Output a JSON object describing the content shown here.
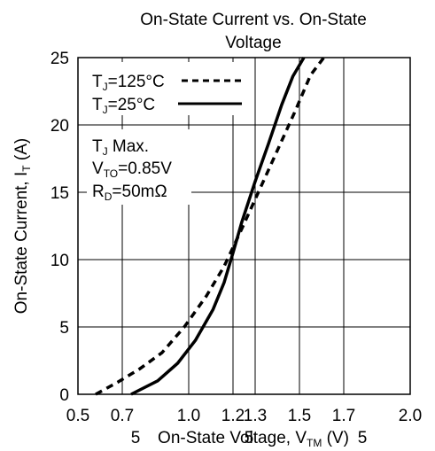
{
  "chart_data": {
    "type": "line",
    "title": [
      "On-State Current vs. On-State",
      "Voltage"
    ],
    "xlabel": {
      "main": "On-State Voltage, V",
      "sub": "TM",
      "unit": " (V)"
    },
    "ylabel": {
      "main": "On-State Current, I",
      "sub": "T",
      "unit": " (A)"
    },
    "xlim": [
      0.5,
      2.0
    ],
    "ylim": [
      0,
      25
    ],
    "x_ticks": [
      0.5,
      0.7,
      1.0,
      1.2,
      1.3,
      1.5,
      1.7,
      2.0
    ],
    "x_tick_labels": [
      "0.5",
      "0.7",
      "1.0",
      "1.2",
      "1.3",
      "1.5",
      "1.7",
      "2.0"
    ],
    "y_ticks": [
      0,
      5,
      10,
      15,
      20,
      25
    ],
    "y_tick_labels": [
      "0",
      "5",
      "10",
      "15",
      "20",
      "25"
    ],
    "grid": true,
    "stray_glyphs": [
      "5",
      "5",
      "5"
    ],
    "legend_position": "top-left",
    "series": [
      {
        "name": {
          "pre": "T",
          "sub": "J",
          "post": "=125°C"
        },
        "style": "dashed",
        "x": [
          0.58,
          0.68,
          0.78,
          0.88,
          0.98,
          1.08,
          1.16,
          1.24,
          1.32,
          1.4,
          1.48,
          1.55,
          1.61
        ],
        "y": [
          0,
          0.9,
          1.9,
          3.1,
          5.0,
          7.3,
          9.5,
          12.3,
          15.2,
          18.1,
          21.0,
          23.7,
          25.0
        ]
      },
      {
        "name": {
          "pre": "T",
          "sub": "J",
          "post": "=25°C"
        },
        "style": "solid",
        "x": [
          0.74,
          0.86,
          0.95,
          1.03,
          1.11,
          1.16,
          1.2,
          1.24,
          1.3,
          1.36,
          1.42,
          1.47,
          1.52
        ],
        "y": [
          0,
          1.0,
          2.3,
          4.0,
          6.3,
          8.3,
          10.5,
          12.8,
          15.8,
          18.6,
          21.5,
          23.6,
          25.0
        ]
      }
    ],
    "annotations": [
      {
        "pre": "T",
        "sub": "J",
        "post": " Max."
      },
      {
        "pre": "V",
        "sub": "TO",
        "post": "=0.85V"
      },
      {
        "pre": "R",
        "sub": "D",
        "post": "=50mΩ"
      }
    ]
  }
}
